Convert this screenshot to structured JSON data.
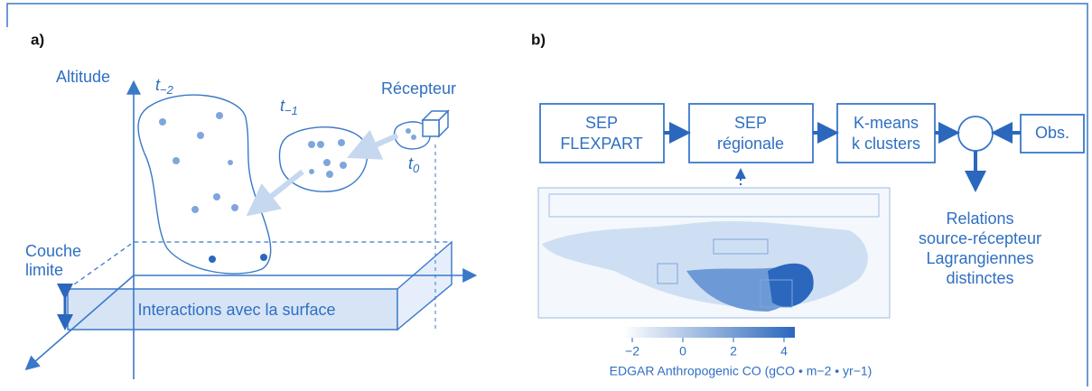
{
  "panel_a": {
    "label": "a)",
    "altitude": "Altitude",
    "times": [
      {
        "base": "t",
        "sub": "−2"
      },
      {
        "base": "t",
        "sub": "−1"
      },
      {
        "base": "t",
        "sub": "0"
      }
    ],
    "receptor": "Récepteur",
    "boundary_layer": [
      "Couche",
      "limite"
    ],
    "surface": "Interactions avec la surface"
  },
  "panel_b": {
    "label": "b)",
    "boxes": [
      {
        "lines": [
          "SEP",
          "FLEXPART"
        ]
      },
      {
        "lines": [
          "SEP",
          "régionale"
        ]
      },
      {
        "lines": [
          "K-means",
          "k clusters"
        ]
      },
      {
        "lines": [
          "Obs."
        ]
      }
    ],
    "output": [
      "Relations",
      "source-récepteur",
      "Lagrangiennes",
      "distinctes"
    ],
    "colorbar": {
      "ticks": [
        {
          "value": -2,
          "label": "−2"
        },
        0,
        2,
        4
      ],
      "label": "EDGAR Anthropogenic CO (gCO • m−2 • yr−1)"
    }
  }
}
